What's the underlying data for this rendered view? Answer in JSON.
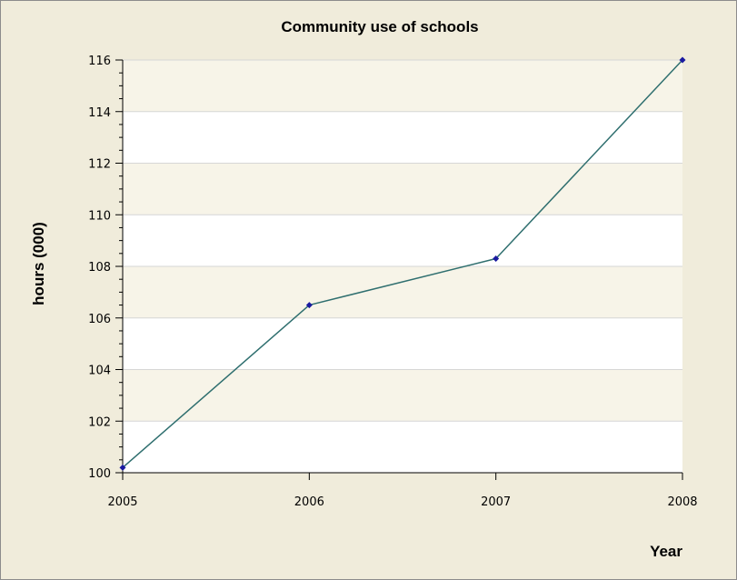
{
  "chart_data": {
    "type": "line",
    "title": "Community use of schools",
    "xlabel": "Year",
    "ylabel": "hours (000)",
    "x": [
      "2005",
      "2006",
      "2007",
      "2008"
    ],
    "series": [
      {
        "values": [
          100.2,
          106.5,
          108.3,
          116.0
        ]
      }
    ],
    "ylim": [
      100,
      116
    ],
    "y_ticks": [
      100,
      102,
      104,
      106,
      108,
      110,
      112,
      114,
      116
    ],
    "grid": true,
    "line_color": "#2f6f6f",
    "marker_color": "#1a1aa0",
    "band_colors": [
      "#ffffff",
      "#f7f4e8"
    ]
  }
}
